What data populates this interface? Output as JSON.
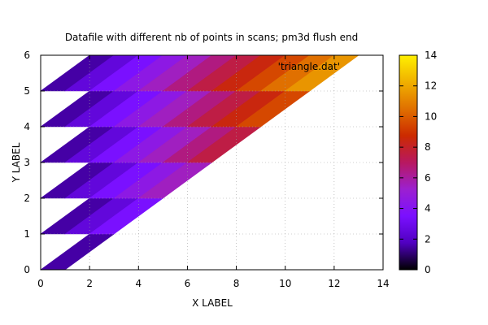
{
  "chart_data": {
    "type": "heatmap",
    "title": "Datafile with different nb of points in scans; pm3d flush end",
    "xlabel": "X LABEL",
    "ylabel": "Y LABEL",
    "xlim": [
      0,
      14
    ],
    "ylim": [
      0,
      6
    ],
    "xticks": [
      "0",
      "2",
      "4",
      "6",
      "8",
      "10",
      "12",
      "14"
    ],
    "yticks": [
      "0",
      "1",
      "2",
      "3",
      "4",
      "5",
      "6"
    ],
    "grid": true,
    "legend": {
      "label": "'triangle.dat'",
      "position": "top-right"
    },
    "colorbar": {
      "range": [
        0,
        14
      ],
      "ticks": [
        "0",
        "2",
        "4",
        "6",
        "8",
        "10",
        "12",
        "14"
      ],
      "palette": [
        "#000000",
        "#5000c0",
        "#7a10ff",
        "#9c20d0",
        "#b81860",
        "#cc2a00",
        "#e07000",
        "#f0b000",
        "#fff000"
      ]
    },
    "scans": [
      {
        "y": 0,
        "x": [
          0,
          1
        ]
      },
      {
        "y": 1,
        "x": [
          0,
          1,
          2,
          3
        ]
      },
      {
        "y": 2,
        "x": [
          0,
          1,
          2,
          3,
          4,
          5
        ]
      },
      {
        "y": 3,
        "x": [
          0,
          1,
          2,
          3,
          4,
          5,
          6,
          7
        ]
      },
      {
        "y": 4,
        "x": [
          0,
          1,
          2,
          3,
          4,
          5,
          6,
          7,
          8,
          9
        ]
      },
      {
        "y": 5,
        "x": [
          0,
          1,
          2,
          3,
          4,
          5,
          6,
          7,
          8,
          9,
          10,
          11
        ]
      },
      {
        "y": 6,
        "x": [
          2,
          3,
          4,
          5,
          6,
          7,
          8,
          9,
          10,
          11,
          12,
          13
        ]
      }
    ],
    "z_rule": "z = x"
  }
}
